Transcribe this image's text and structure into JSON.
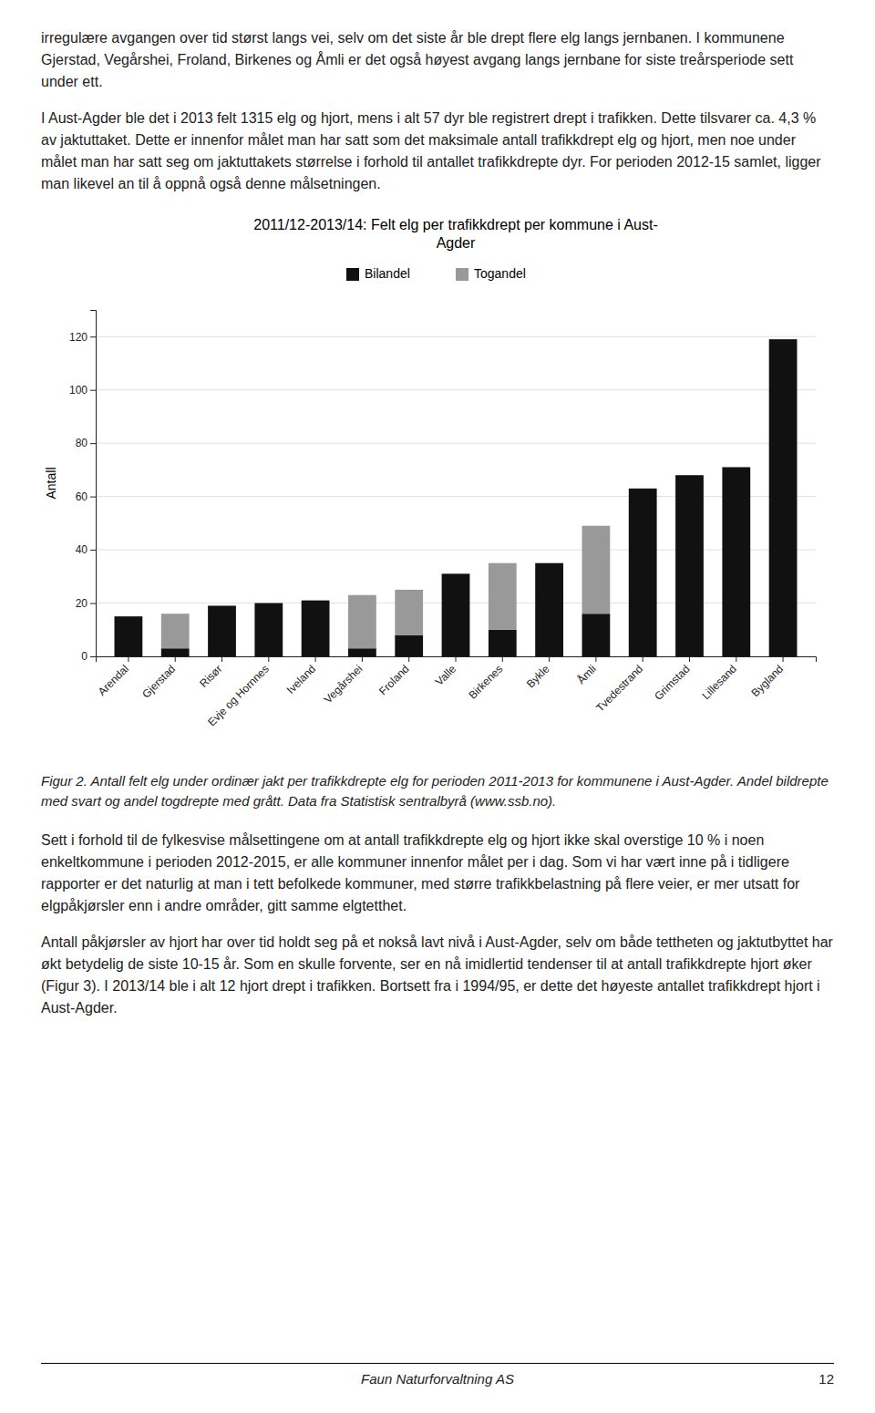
{
  "chart_data": {
    "type": "bar",
    "stacked": true,
    "title": "2011/12-2013/14: Felt elg per trafikkdrept per kommune i Aust-\nAgder",
    "ylabel": "Antall",
    "categories": [
      "Arendal",
      "Gjerstad",
      "Risør",
      "Evje og Hornnes",
      "Iveland",
      "Vegårshei",
      "Froland",
      "Valle",
      "Birkenes",
      "Bykle",
      "Åmli",
      "Tvedestrand",
      "Grimstad",
      "Lillesand",
      "Bygland"
    ],
    "series": [
      {
        "name": "Bilandel",
        "color": "#111111",
        "values": [
          15,
          3,
          19,
          20,
          21,
          3,
          8,
          31,
          10,
          35,
          16,
          63,
          68,
          71,
          119
        ]
      },
      {
        "name": "Togandel",
        "color": "#999999",
        "values": [
          0,
          13,
          0,
          0,
          0,
          20,
          17,
          0,
          25,
          0,
          33,
          0,
          0,
          0,
          0
        ]
      }
    ],
    "ylim": [
      0,
      130
    ],
    "yticks": [
      0,
      20,
      40,
      60,
      80,
      100,
      120
    ],
    "grid": true,
    "legend": "upper center"
  },
  "paragraphs": [
    "irregulære avgangen over tid størst langs vei, selv om det siste år ble drept flere elg langs jernbanen. I kommunene Gjerstad, Vegårshei, Froland, Birkenes og Åmli er det også høyest avgang langs jernbane for siste treårsperiode sett under ett.",
    "I Aust-Agder ble det i 2013 felt 1315 elg og hjort, mens i alt 57 dyr ble registrert drept i trafikken. Dette tilsvarer ca. 4,3 % av jaktuttaket. Dette er innenfor målet man har satt som det maksimale antall trafikkdrept elg og hjort, men noe under målet man har satt seg om jaktuttakets størrelse i forhold til antallet trafikkdrepte dyr. For perioden 2012-15 samlet, ligger man likevel an til å oppnå også denne målsetningen.",
    "Sett i forhold til de fylkesvise målsettingene om at antall trafikkdrepte elg og hjort ikke skal overstige 10 % i noen enkeltkommune i perioden 2012-2015, er alle kommuner innenfor målet per i dag. Som vi har vært inne på i tidligere rapporter er det naturlig at man i tett befolkede kommuner, med større trafikkbelastning på flere veier, er mer utsatt for elgpåkjørsler enn i andre områder, gitt samme elgtetthet.",
    "Antall påkjørsler av hjort har over tid holdt seg på et nokså lavt nivå i Aust-Agder, selv om både tettheten og jaktutbyttet har økt betydelig de siste 10-15 år. Som en skulle forvente, ser en nå imidlertid tendenser til at antall trafikkdrepte hjort øker (Figur 3). I 2013/14 ble i alt 12 hjort drept i trafikken. Bortsett fra i 1994/95, er dette det høyeste antallet trafikkdrept hjort i Aust-Agder."
  ],
  "caption": "Figur 2. Antall felt elg under ordinær jakt per trafikkdrepte elg for perioden 2011-2013 for kommunene i Aust-Agder. Andel bildrepte med svart og andel togdrepte med grått. Data fra Statistisk sentralbyrå (www.ssb.no).",
  "footer_left": "Faun Naturforvaltning AS",
  "footer_right": "12"
}
